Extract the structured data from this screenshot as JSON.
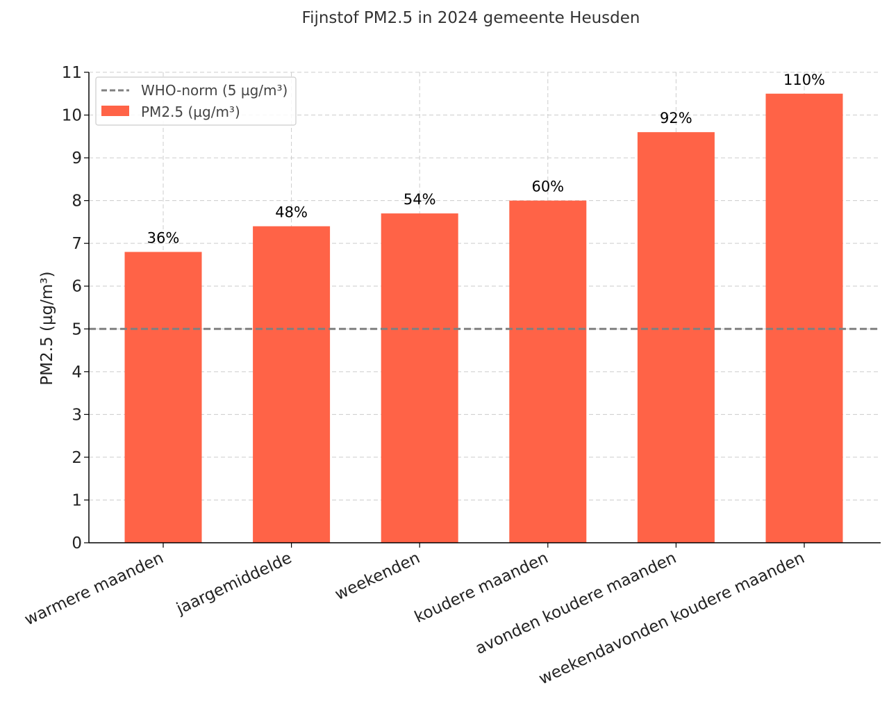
{
  "chart_data": {
    "type": "bar",
    "title": "Fijnstof PM2.5 in 2024 gemeente Heusden",
    "xlabel": "",
    "ylabel": "PM2.5 (µg/m³)",
    "ylim": [
      0,
      11
    ],
    "yticks": [
      "0",
      "1",
      "2",
      "3",
      "4",
      "5",
      "6",
      "7",
      "8",
      "9",
      "10",
      "11"
    ],
    "grid": true,
    "legend_position": "top-left",
    "categories": [
      "warmere maanden",
      "jaargemiddelde",
      "weekenden",
      "koudere maanden",
      "avonden koudere maanden",
      "weekendavonden koudere maanden"
    ],
    "series": [
      {
        "name": "PM2.5 (µg/m³)",
        "color": "#ff6347",
        "values": [
          6.8,
          7.4,
          7.7,
          8.0,
          9.6,
          10.5
        ]
      }
    ],
    "data_labels": [
      "36%",
      "48%",
      "54%",
      "60%",
      "92%",
      "110%"
    ],
    "reference_line": {
      "name": "WHO-norm (5 µg/m³)",
      "value": 5,
      "color": "#808080",
      "style": "dashed"
    }
  }
}
